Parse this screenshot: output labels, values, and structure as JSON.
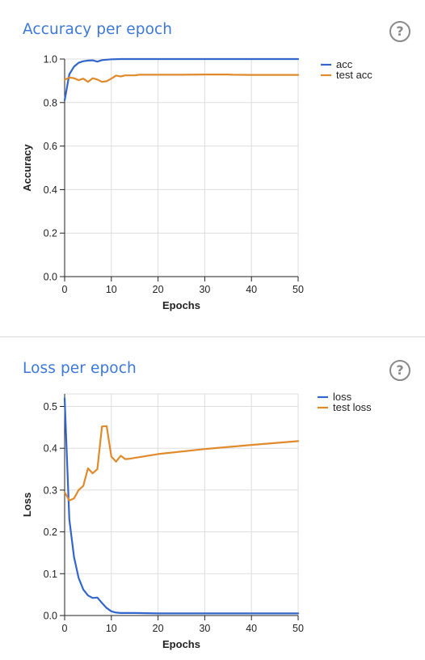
{
  "colors": {
    "series_train": "#3366cc",
    "series_test": "#e08a2c",
    "title": "#3c78d8",
    "grid": "#dddddd"
  },
  "accuracy_panel": {
    "title": "Accuracy per epoch",
    "help_icon": "question-circle-icon",
    "help_text": "?"
  },
  "loss_panel": {
    "title": "Loss per epoch",
    "help_icon": "question-circle-icon",
    "help_text": "?"
  },
  "chart_data": [
    {
      "type": "line",
      "title": "Accuracy per epoch",
      "xlabel": "Epochs",
      "ylabel": "Accuracy",
      "xlim": [
        0,
        50
      ],
      "ylim": [
        0,
        1
      ],
      "xticks": [
        0,
        10,
        20,
        30,
        40,
        50
      ],
      "yticks": [
        0.0,
        0.2,
        0.4,
        0.6,
        0.8,
        1.0
      ],
      "ytick_labels": [
        "0.0",
        "0.2",
        "0.4",
        "0.6",
        "0.8",
        "1.0"
      ],
      "grid": true,
      "legend": "right",
      "series": [
        {
          "name": "acc",
          "color": "#3366cc",
          "x": [
            0,
            1,
            2,
            3,
            4,
            5,
            6,
            7,
            8,
            9,
            10,
            12,
            15,
            20,
            25,
            30,
            35,
            40,
            45,
            50
          ],
          "y": [
            0.81,
            0.93,
            0.965,
            0.983,
            0.99,
            0.993,
            0.994,
            0.988,
            0.995,
            0.997,
            0.999,
            1.0,
            1.0,
            1.0,
            1.0,
            1.0,
            1.0,
            1.0,
            1.0,
            1.0
          ]
        },
        {
          "name": "test acc",
          "color": "#e08a2c",
          "x": [
            0,
            1,
            2,
            3,
            4,
            5,
            6,
            7,
            8,
            9,
            10,
            11,
            12,
            13,
            14,
            15,
            16,
            20,
            25,
            30,
            35,
            36,
            40,
            45,
            50
          ],
          "y": [
            0.905,
            0.915,
            0.912,
            0.903,
            0.91,
            0.895,
            0.912,
            0.906,
            0.895,
            0.898,
            0.91,
            0.924,
            0.92,
            0.925,
            0.925,
            0.925,
            0.928,
            0.928,
            0.928,
            0.929,
            0.929,
            0.928,
            0.927,
            0.927,
            0.927
          ]
        }
      ]
    },
    {
      "type": "line",
      "title": "Loss per epoch",
      "xlabel": "Epochs",
      "ylabel": "Loss",
      "xlim": [
        0,
        50
      ],
      "ylim": [
        0,
        0.53
      ],
      "xticks": [
        0,
        10,
        20,
        30,
        40,
        50
      ],
      "yticks": [
        0.0,
        0.1,
        0.2,
        0.3,
        0.4,
        0.5
      ],
      "ytick_labels": [
        "0.0",
        "0.1",
        "0.2",
        "0.3",
        "0.4",
        "0.5"
      ],
      "grid": true,
      "legend": "right",
      "series": [
        {
          "name": "loss",
          "color": "#3366cc",
          "x": [
            0,
            1,
            2,
            3,
            4,
            5,
            6,
            7,
            8,
            9,
            10,
            11,
            12,
            15,
            20,
            30,
            40,
            50
          ],
          "y": [
            0.52,
            0.23,
            0.14,
            0.09,
            0.062,
            0.048,
            0.042,
            0.043,
            0.03,
            0.018,
            0.01,
            0.007,
            0.006,
            0.006,
            0.005,
            0.005,
            0.005,
            0.005
          ]
        },
        {
          "name": "test loss",
          "color": "#e08a2c",
          "x": [
            0,
            1,
            2,
            3,
            4,
            5,
            6,
            7,
            8,
            9,
            10,
            11,
            12,
            13,
            14,
            20,
            30,
            40,
            50
          ],
          "y": [
            0.295,
            0.275,
            0.28,
            0.3,
            0.31,
            0.352,
            0.34,
            0.35,
            0.452,
            0.453,
            0.38,
            0.368,
            0.382,
            0.374,
            0.375,
            0.386,
            0.398,
            0.408,
            0.417
          ]
        }
      ]
    }
  ]
}
